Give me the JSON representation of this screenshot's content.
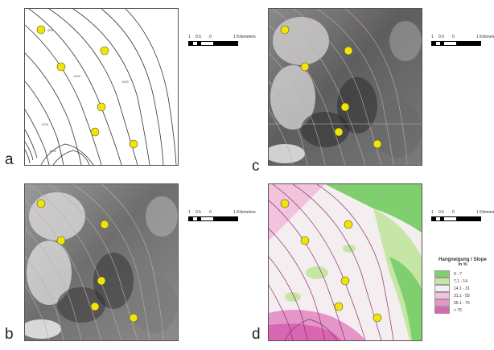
{
  "panels": [
    {
      "id": "a",
      "label": "a",
      "style": "contours"
    },
    {
      "id": "b",
      "label": "b",
      "style": "hillshade"
    },
    {
      "id": "c",
      "label": "c",
      "style": "hillshade"
    },
    {
      "id": "d",
      "label": "d",
      "style": "slope"
    }
  ],
  "points": [
    "1",
    "2",
    "3",
    "4",
    "5",
    "6"
  ],
  "contour_labels": [
    "1600",
    "1400",
    "1200",
    "1000",
    "800"
  ],
  "scalebar": {
    "ticks": [
      "1",
      "0.5",
      "0"
    ],
    "end_label": "1 Kilometers"
  },
  "legend": {
    "title": "Hangneigung / Slope",
    "unit": "in %",
    "items": [
      {
        "label": "0 - 7",
        "color": "#7fcf6f"
      },
      {
        "label": "7.1 - 14",
        "color": "#c6e6a6"
      },
      {
        "label": "14.1 - 31",
        "color": "#f5eef0"
      },
      {
        "label": "31.1 - 55",
        "color": "#f2c3dd"
      },
      {
        "label": "55.1 - 75",
        "color": "#e596c8"
      },
      {
        "label": "> 75",
        "color": "#d966b3"
      }
    ]
  }
}
